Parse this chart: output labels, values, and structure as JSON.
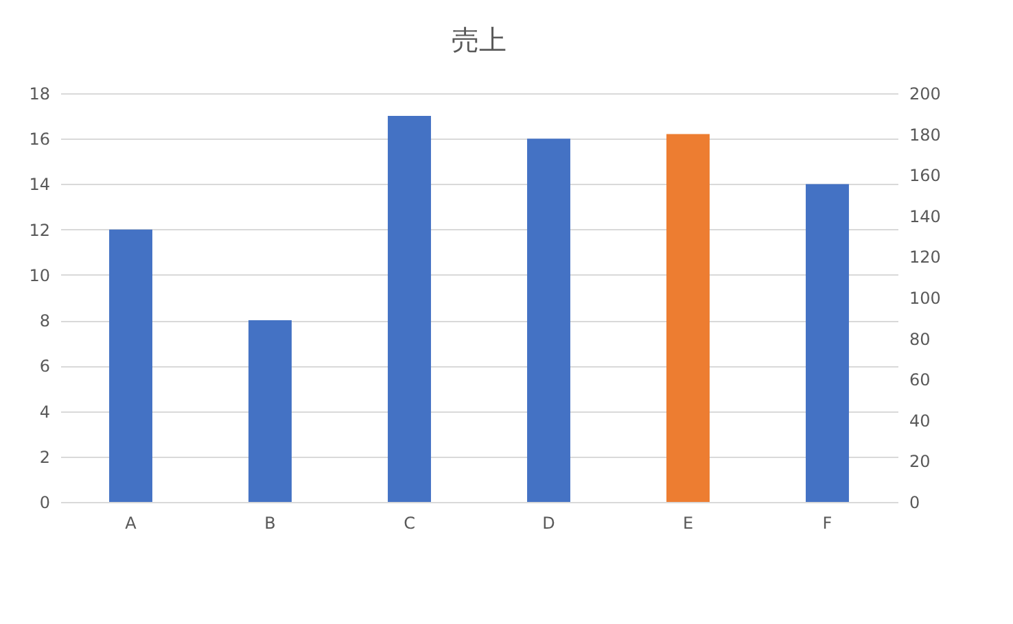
{
  "chart_data": {
    "type": "bar",
    "title": "売上",
    "categories": [
      "A",
      "B",
      "C",
      "D",
      "E",
      "F"
    ],
    "series": [
      {
        "color": "#4472c4",
        "values": [
          12,
          8,
          17,
          16,
          null,
          14
        ],
        "axis": "y"
      },
      {
        "color": "#ed7d31",
        "values": [
          null,
          null,
          null,
          null,
          180,
          null
        ],
        "axis": "y2"
      }
    ],
    "ylim": [
      0,
      18
    ],
    "yticks": [
      0,
      2,
      4,
      6,
      8,
      10,
      12,
      14,
      16,
      18
    ],
    "y2lim": [
      0,
      200
    ],
    "y2ticks": [
      0,
      20,
      40,
      60,
      80,
      100,
      120,
      140,
      160,
      180,
      200
    ],
    "grid": "y"
  }
}
